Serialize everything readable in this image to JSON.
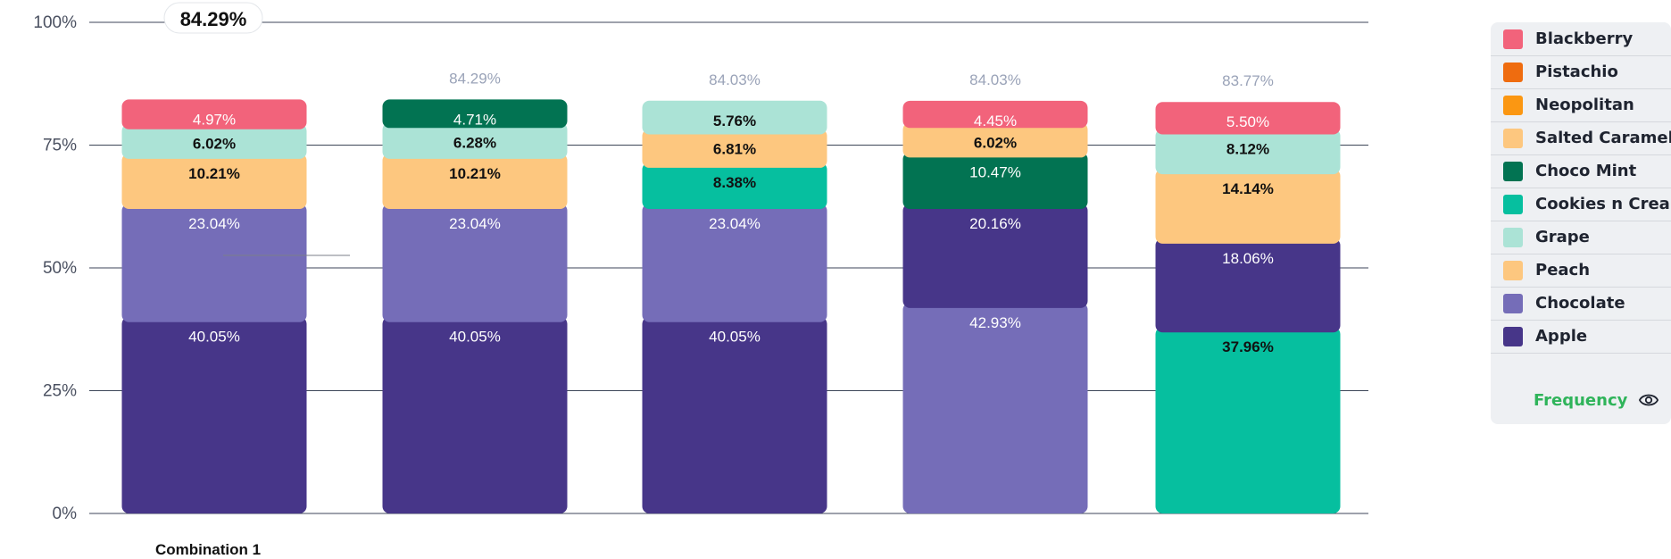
{
  "chart_data": {
    "type": "bar",
    "stacked": true,
    "ylim": [
      0,
      100
    ],
    "y_ticks": [
      {
        "value": 0,
        "label": "0%"
      },
      {
        "value": 25,
        "label": "25%"
      },
      {
        "value": 50,
        "label": "50%"
      },
      {
        "value": 75,
        "label": "75%"
      },
      {
        "value": 100,
        "label": "100%"
      }
    ],
    "grid": true,
    "legend_position": "right",
    "categories": [
      "Combination 1",
      "",
      "",
      "",
      ""
    ],
    "totals": [
      "84.29%",
      "84.29%",
      "84.03%",
      "84.03%",
      "83.77%"
    ],
    "bars": [
      {
        "segments": [
          {
            "flavor": "Apple",
            "value": 40.05,
            "label": "40.05%"
          },
          {
            "flavor": "Chocolate",
            "value": 23.04,
            "label": "23.04%"
          },
          {
            "flavor": "Peach",
            "value": 10.21,
            "label": "10.21%"
          },
          {
            "flavor": "Grape",
            "value": 6.02,
            "label": "6.02%"
          },
          {
            "flavor": "Blackberry",
            "value": 4.97,
            "label": "4.97%"
          }
        ]
      },
      {
        "segments": [
          {
            "flavor": "Apple",
            "value": 40.05,
            "label": "40.05%"
          },
          {
            "flavor": "Chocolate",
            "value": 23.04,
            "label": "23.04%"
          },
          {
            "flavor": "Peach",
            "value": 10.21,
            "label": "10.21%"
          },
          {
            "flavor": "Grape",
            "value": 6.28,
            "label": "6.28%"
          },
          {
            "flavor": "Choco Mint",
            "value": 4.71,
            "label": "4.71%"
          }
        ]
      },
      {
        "segments": [
          {
            "flavor": "Apple",
            "value": 40.05,
            "label": "40.05%"
          },
          {
            "flavor": "Chocolate",
            "value": 23.04,
            "label": "23.04%"
          },
          {
            "flavor": "Cookies n Cream",
            "value": 8.38,
            "label": "8.38%"
          },
          {
            "flavor": "Peach",
            "value": 6.81,
            "label": "6.81%"
          },
          {
            "flavor": "Grape",
            "value": 5.76,
            "label": "5.76%"
          }
        ]
      },
      {
        "segments": [
          {
            "flavor": "Chocolate",
            "value": 42.93,
            "label": "42.93%"
          },
          {
            "flavor": "Apple",
            "value": 20.16,
            "label": "20.16%"
          },
          {
            "flavor": "Choco Mint",
            "value": 10.47,
            "label": "10.47%"
          },
          {
            "flavor": "Peach",
            "value": 6.02,
            "label": "6.02%"
          },
          {
            "flavor": "Blackberry",
            "value": 4.45,
            "label": "4.45%"
          }
        ]
      },
      {
        "segments": [
          {
            "flavor": "Cookies n Cream",
            "value": 37.96,
            "label": "37.96%"
          },
          {
            "flavor": "Apple",
            "value": 18.06,
            "label": "18.06%"
          },
          {
            "flavor": "Peach",
            "value": 14.14,
            "label": "14.14%"
          },
          {
            "flavor": "Grape",
            "value": 8.12,
            "label": "8.12%"
          },
          {
            "flavor": "Blackberry",
            "value": 5.5,
            "label": "5.50%"
          }
        ]
      }
    ],
    "highlighted_bar_index": 0,
    "tooltip_value": "84.29%"
  },
  "colors": {
    "Blackberry": "#f2637b",
    "Pistachio": "#ef6c0f",
    "Neopolitan": "#fb9712",
    "Salted Caramel": "#fdc77f",
    "Choco Mint": "#027352",
    "Cookies n Cream": "#06bf9f",
    "Grape": "#abe3d6",
    "Peach": "#fdc77f",
    "Chocolate": "#756db8",
    "Apple": "#473689"
  },
  "dark_text_flavors": [
    "Grape",
    "Peach",
    "Salted Caramel",
    "Cookies n Cream"
  ],
  "legend": {
    "items": [
      {
        "label": "Blackberry",
        "color": "#f2637b"
      },
      {
        "label": "Pistachio",
        "color": "#ef6c0f"
      },
      {
        "label": "Neopolitan",
        "color": "#fb9712"
      },
      {
        "label": "Salted Caramel",
        "color": "#fdc77f"
      },
      {
        "label": "Choco Mint",
        "color": "#027352"
      },
      {
        "label": "Cookies n Cream",
        "color": "#06bf9f"
      },
      {
        "label": "Grape",
        "color": "#abe3d6"
      },
      {
        "label": "Peach",
        "color": "#fdc77f"
      },
      {
        "label": "Chocolate",
        "color": "#756db8"
      },
      {
        "label": "Apple",
        "color": "#473689"
      }
    ],
    "toggle_label": "Frequency",
    "toggle_icon": "eye-icon"
  }
}
